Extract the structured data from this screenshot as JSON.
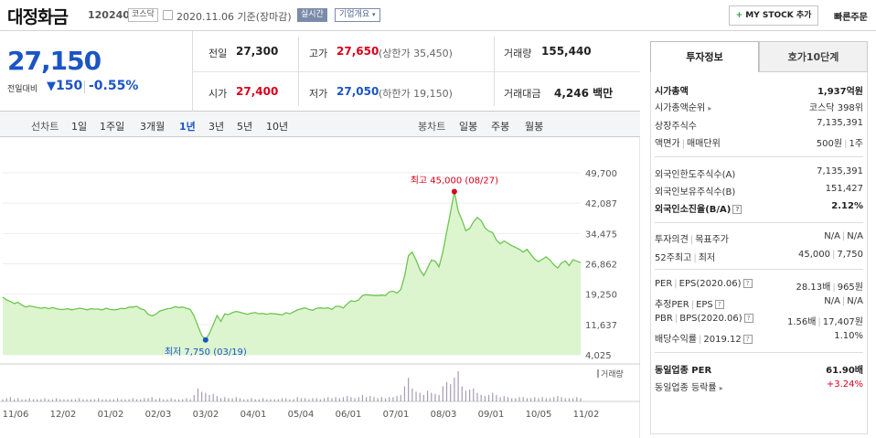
{
  "header": {
    "name": "대정화금",
    "code": "120240",
    "market": "코스닥",
    "date": "2020.11.06 기준(장마감)",
    "realtime": "실시간",
    "corp_overview": "기업개요",
    "mystock": "MY STOCK 추가",
    "quick_order": "빠른주문"
  },
  "summary": {
    "price": "27,150",
    "change_label": "전일대비",
    "change": "150",
    "change_pct": "-0.55%",
    "prev_label": "전일",
    "prev": "27,300",
    "high_label": "고가",
    "high": "27,650",
    "upper_limit": "(상한가 35,450)",
    "volume_label": "거래량",
    "volume": "155,440",
    "open_label": "시가",
    "open": "27,400",
    "low_label": "저가",
    "low": "27,050",
    "lower_limit": "(하한가 19,150)",
    "amount_label": "거래대금",
    "amount": "4,246 백만"
  },
  "periods": {
    "line_label": "선차트",
    "items": [
      "1일",
      "1주일",
      "3개월",
      "1년",
      "3년",
      "5년",
      "10년"
    ],
    "selected": "1년",
    "candle_label": "봉차트",
    "candle_items": [
      "일봉",
      "주봉",
      "월봉"
    ]
  },
  "chart_data": {
    "type": "area",
    "colors": {
      "line": "#6cc64f",
      "fill": "#dcf5cf",
      "high": "#d9001b",
      "low": "#1b54c6",
      "volume": "#a79bb3"
    },
    "x_ticks": [
      "11/06",
      "12/02",
      "01/02",
      "02/03",
      "03/02",
      "04/01",
      "05/04",
      "06/01",
      "07/01",
      "08/03",
      "09/01",
      "10/05",
      "11/02"
    ],
    "y_ticks": [
      "49,700",
      "42,087",
      "34,475",
      "26,862",
      "19,250",
      "11,637",
      "4,025"
    ],
    "ylim": [
      4025,
      49700
    ],
    "high_annotation": "최고 45,000 (08/27)",
    "low_annotation": "최저 7,750 (03/19)",
    "volume_label": "거래량",
    "series": [
      {
        "values": [
          18500,
          17800,
          17400,
          16900,
          17200,
          16500,
          16000,
          16300,
          16100,
          15900,
          15700,
          15900,
          15600,
          15900,
          15600,
          15400,
          15400,
          15600,
          15300,
          15500,
          15700,
          15600,
          15300,
          15600,
          15500,
          15500,
          15300,
          15700,
          15400,
          15300,
          15400,
          15700,
          15600,
          16000,
          16000,
          16200,
          15600,
          15300,
          14200,
          13800,
          14200,
          15000,
          15300,
          15600,
          15700,
          16100,
          15900,
          16000,
          15700,
          15400,
          13700,
          11200,
          8900,
          7750,
          9400,
          11600,
          13900,
          12400,
          14300,
          14100,
          14600,
          14900,
          14700,
          14400,
          14200,
          14500,
          14600,
          14300,
          14400,
          14200,
          14400,
          14300,
          14200,
          14000,
          14600,
          14300,
          14800,
          15300,
          15600,
          15800,
          15400,
          15200,
          15700,
          15800,
          15700,
          15800,
          15400,
          16200,
          16200,
          15800,
          16800,
          17600,
          17400,
          17800,
          18900,
          19100,
          19000,
          18900,
          18900,
          19000,
          18900,
          19800,
          20000,
          19500,
          20400,
          23800,
          28900,
          29800,
          27800,
          25400,
          23900,
          25800,
          27800,
          27500,
          26100,
          29800,
          34900,
          39800,
          45000,
          40100,
          37800,
          35200,
          35700,
          37400,
          38500,
          37700,
          35900,
          35100,
          34700,
          32800,
          31900,
          32600,
          32000,
          31400,
          31000,
          30500,
          29800,
          30500,
          29200,
          28000,
          27400,
          28000,
          28600,
          27800,
          26600,
          25800,
          27100,
          27600,
          26400,
          27900,
          27500,
          27150
        ]
      }
    ],
    "volume": [
      2,
      3,
      4,
      2,
      3,
      2,
      2,
      3,
      2,
      2,
      2,
      3,
      2,
      2,
      3,
      2,
      2,
      2,
      2,
      2,
      3,
      2,
      2,
      2,
      2,
      3,
      2,
      2,
      2,
      2,
      3,
      2,
      2,
      2,
      3,
      2,
      2,
      3,
      3,
      4,
      2,
      3,
      2,
      2,
      3,
      2,
      2,
      2,
      3,
      2,
      6,
      12,
      9,
      8,
      6,
      7,
      5,
      3,
      4,
      3,
      3,
      4,
      3,
      2,
      2,
      3,
      2,
      2,
      3,
      2,
      2,
      2,
      2,
      3,
      3,
      2,
      2,
      4,
      3,
      3,
      2,
      3,
      3,
      2,
      3,
      4,
      3,
      4,
      3,
      4,
      5,
      4,
      3,
      4,
      6,
      4,
      5,
      4,
      3,
      4,
      3,
      4,
      4,
      5,
      6,
      14,
      22,
      12,
      9,
      8,
      6,
      10,
      8,
      7,
      6,
      14,
      18,
      16,
      22,
      28,
      14,
      10,
      11,
      12,
      8,
      6,
      5,
      6,
      8,
      6,
      4,
      5,
      4,
      3,
      3,
      4,
      4,
      3,
      3,
      4,
      3,
      4,
      3,
      3,
      4,
      5,
      4,
      3,
      3,
      3,
      4,
      3
    ]
  },
  "invest": {
    "tab_active": "투자정보",
    "tab_other": "호가10단계",
    "market_cap_label": "시가총액",
    "market_cap": "1,937억원",
    "rank_label": "시가총액순위",
    "rank_market": "코스닥",
    "rank_value": "398위",
    "shares_label": "상장주식수",
    "shares": "7,135,391",
    "par_label": "액면가",
    "unit_label": "매매단위",
    "par": "500원",
    "unit": "1주",
    "foreign_limit_label": "외국인한도주식수(A)",
    "foreign_limit": "7,135,391",
    "foreign_hold_label": "외국인보유주식수(B)",
    "foreign_hold": "151,427",
    "foreign_ratio_label": "외국인소진율(B/A)",
    "foreign_ratio": "2.12%",
    "opinion_label": "투자의견",
    "target_label": "목표주가",
    "opinion": "N/A",
    "target": "N/A",
    "w52_label": "52주최고",
    "w52_low_label": "최저",
    "w52_high": "45,000",
    "w52_low": "7,750",
    "per_label": "PER",
    "eps_label": "EPS(2020.06)",
    "per": "28.13배",
    "eps": "965원",
    "est_per_label": "추정PER",
    "est_eps_label": "EPS",
    "est_per": "N/A",
    "est_eps": "N/A",
    "pbr_label": "PBR",
    "bps_label": "BPS(2020.06)",
    "pbr": "1.56배",
    "bps": "17,407원",
    "div_label": "배당수익률",
    "div_date": "2019.12",
    "div": "1.10%",
    "sector_per_label": "동일업종 PER",
    "sector_per": "61.90배",
    "sector_rate_label": "동일업종 등락률",
    "sector_rate": "+3.24%"
  }
}
